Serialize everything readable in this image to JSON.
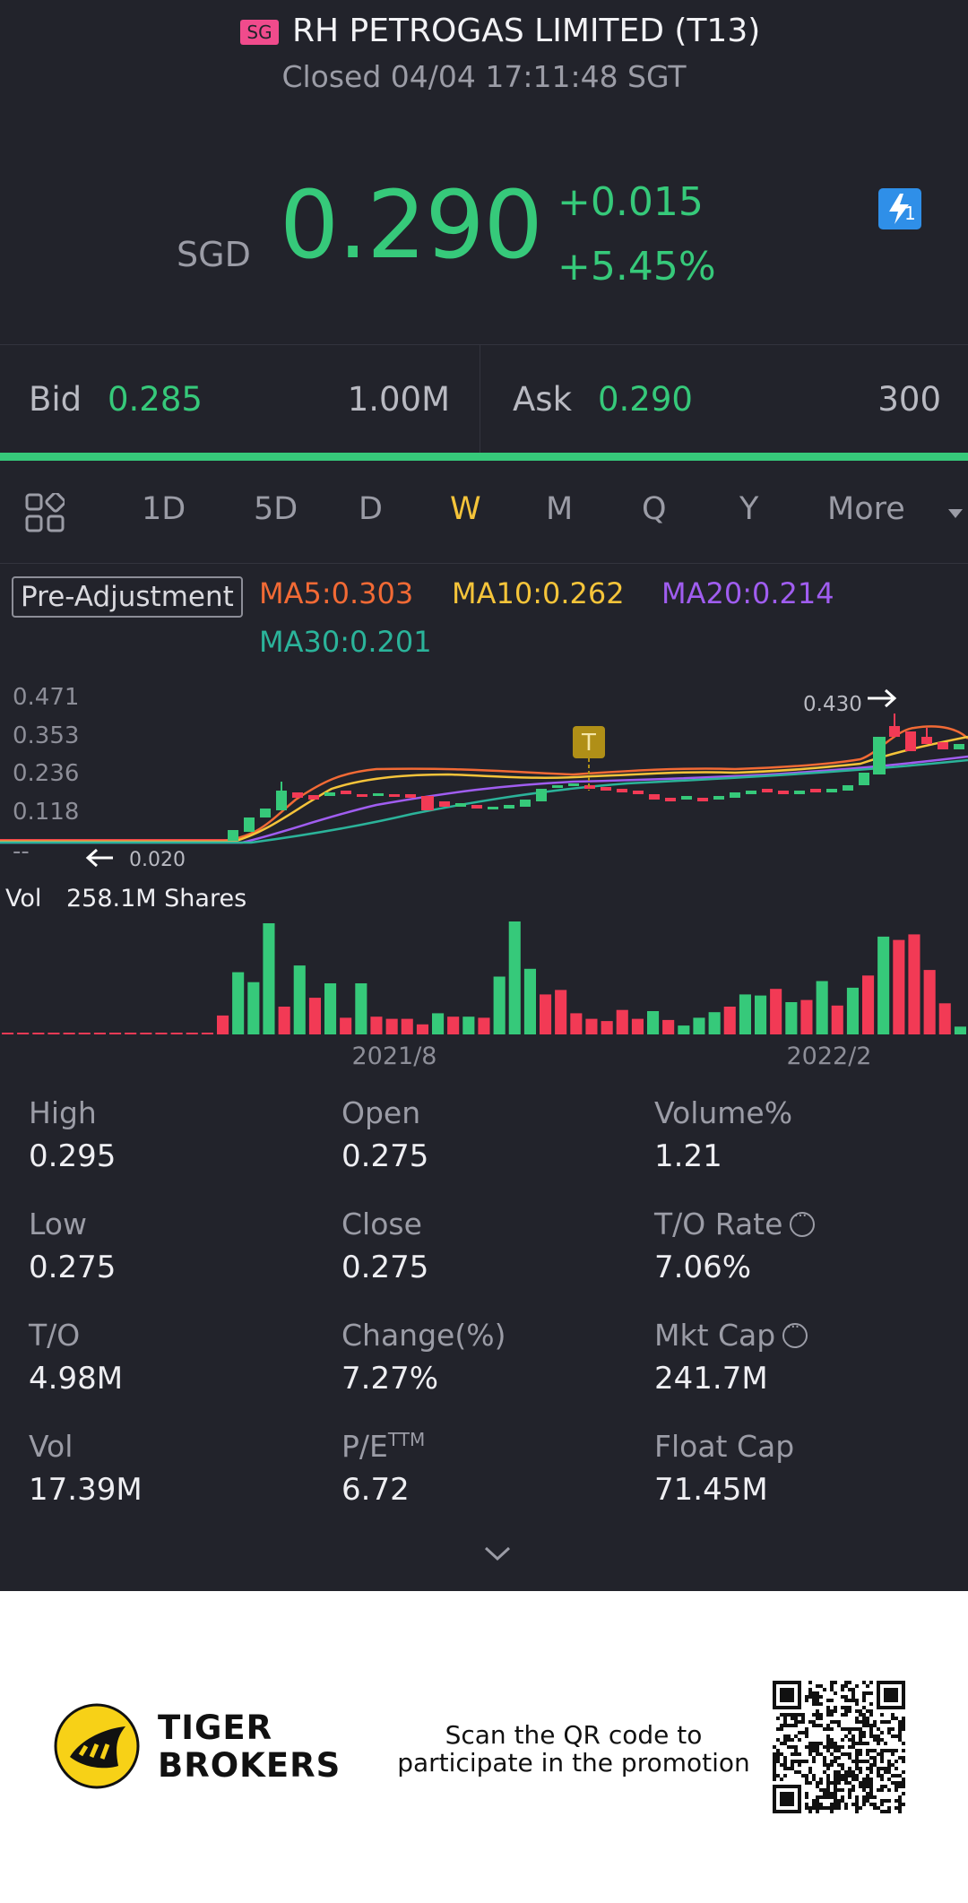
{
  "header": {
    "market_badge": "SG",
    "title": "RH PETROGAS LIMITED (T13)",
    "status": "Closed 04/04 17:11:48 SGT",
    "currency": "SGD",
    "price": "0.290",
    "change": "+0.015",
    "change_pct": "+5.45%",
    "lightning_badge": "1",
    "up_color": "#36c97a"
  },
  "quote": {
    "bid_label": "Bid",
    "bid_price": "0.285",
    "bid_size": "1.00M",
    "ask_label": "Ask",
    "ask_price": "0.290",
    "ask_size": "300"
  },
  "periods": {
    "tabs": [
      "1D",
      "5D",
      "D",
      "W",
      "M",
      "Q",
      "Y",
      "More"
    ],
    "active": "W"
  },
  "indicators": {
    "adjust_label": "Pre-Adjustment",
    "ma5": "MA5:0.303",
    "ma10": "MA10:0.262",
    "ma20": "MA20:0.214",
    "ma30": "MA30:0.201",
    "ma5_color": "#f26a35",
    "ma10_color": "#f5c43a",
    "ma20_color": "#a05df0",
    "ma30_color": "#2bb39a"
  },
  "chart_data": {
    "type": "candlestick",
    "y_ticks": [
      "0.471",
      "0.353",
      "0.236",
      "0.118",
      "--"
    ],
    "high_marker": "0.430",
    "low_marker": "0.020",
    "event_badge": "T",
    "volume_label": "Vol",
    "volume_value": "258.1M Shares",
    "x_ticks": [
      "2021/8",
      "2022/2"
    ],
    "down_color": "#f23a55",
    "up_color": "#36c97a",
    "volume": [
      {
        "v": 0.002,
        "up": false
      },
      {
        "v": 0.002,
        "up": false
      },
      {
        "v": 0.002,
        "up": false
      },
      {
        "v": 0.002,
        "up": false
      },
      {
        "v": 0.002,
        "up": false
      },
      {
        "v": 0.002,
        "up": false
      },
      {
        "v": 0.002,
        "up": false
      },
      {
        "v": 0.002,
        "up": false
      },
      {
        "v": 0.002,
        "up": false
      },
      {
        "v": 0.002,
        "up": false
      },
      {
        "v": 0.002,
        "up": false
      },
      {
        "v": 0.002,
        "up": false
      },
      {
        "v": 0.002,
        "up": false
      },
      {
        "v": 0.002,
        "up": false
      },
      {
        "v": 0.17,
        "up": false
      },
      {
        "v": 0.56,
        "up": true
      },
      {
        "v": 0.47,
        "up": true
      },
      {
        "v": 1.0,
        "up": true
      },
      {
        "v": 0.25,
        "up": false
      },
      {
        "v": 0.62,
        "up": true
      },
      {
        "v": 0.33,
        "up": false
      },
      {
        "v": 0.46,
        "up": true
      },
      {
        "v": 0.15,
        "up": false
      },
      {
        "v": 0.46,
        "up": true
      },
      {
        "v": 0.16,
        "up": false
      },
      {
        "v": 0.14,
        "up": false
      },
      {
        "v": 0.14,
        "up": false
      },
      {
        "v": 0.09,
        "up": false
      },
      {
        "v": 0.19,
        "up": true
      },
      {
        "v": 0.16,
        "up": false
      },
      {
        "v": 0.16,
        "up": true
      },
      {
        "v": 0.15,
        "up": false
      },
      {
        "v": 0.52,
        "up": true
      },
      {
        "v": 1.02,
        "up": true
      },
      {
        "v": 0.59,
        "up": true
      },
      {
        "v": 0.36,
        "up": false
      },
      {
        "v": 0.4,
        "up": false
      },
      {
        "v": 0.19,
        "up": false
      },
      {
        "v": 0.14,
        "up": false
      },
      {
        "v": 0.12,
        "up": false
      },
      {
        "v": 0.22,
        "up": false
      },
      {
        "v": 0.14,
        "up": false
      },
      {
        "v": 0.21,
        "up": true
      },
      {
        "v": 0.13,
        "up": false
      },
      {
        "v": 0.08,
        "up": true
      },
      {
        "v": 0.15,
        "up": true
      },
      {
        "v": 0.2,
        "up": true
      },
      {
        "v": 0.25,
        "up": false
      },
      {
        "v": 0.36,
        "up": true
      },
      {
        "v": 0.35,
        "up": true
      },
      {
        "v": 0.41,
        "up": false
      },
      {
        "v": 0.29,
        "up": true
      },
      {
        "v": 0.31,
        "up": false
      },
      {
        "v": 0.48,
        "up": true
      },
      {
        "v": 0.26,
        "up": false
      },
      {
        "v": 0.42,
        "up": true
      },
      {
        "v": 0.53,
        "up": false
      },
      {
        "v": 0.88,
        "up": true
      },
      {
        "v": 0.85,
        "up": false
      },
      {
        "v": 0.9,
        "up": false
      },
      {
        "v": 0.58,
        "up": false
      },
      {
        "v": 0.28,
        "up": false
      },
      {
        "v": 0.07,
        "up": true
      }
    ]
  },
  "stats": [
    {
      "label": "High",
      "value": "0.295",
      "info": false
    },
    {
      "label": "Open",
      "value": "0.275",
      "info": false
    },
    {
      "label": "Volume%",
      "value": "1.21",
      "info": false
    },
    {
      "label": "Low",
      "value": "0.275",
      "info": false
    },
    {
      "label": "Close",
      "value": "0.275",
      "info": false
    },
    {
      "label": "T/O Rate",
      "value": "7.06%",
      "info": true
    },
    {
      "label": "T/O",
      "value": "4.98M",
      "info": false
    },
    {
      "label": "Change(%)",
      "value": "7.27%",
      "info": false
    },
    {
      "label": "Mkt Cap",
      "value": "241.7M",
      "info": true
    },
    {
      "label": "Vol",
      "value": "17.39M",
      "info": false
    },
    {
      "label": "P/E",
      "sup": "TTM",
      "value": "6.72",
      "info": false
    },
    {
      "label": "Float Cap",
      "value": "71.45M",
      "info": false
    }
  ],
  "footer": {
    "brand_line1": "TIGER",
    "brand_line2": "BROKERS",
    "promo_line1": "Scan the QR code to",
    "promo_line2": "participate in the promotion"
  }
}
